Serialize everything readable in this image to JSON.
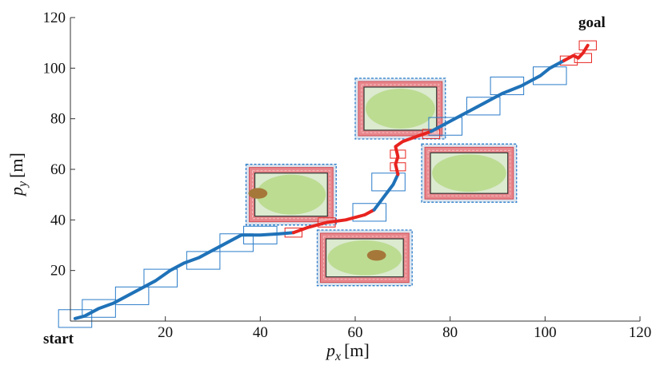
{
  "chart_data": {
    "type": "line",
    "xlabel": {
      "var": "p",
      "sub": "x",
      "unit": "[m]"
    },
    "ylabel": {
      "var": "p",
      "sub": "y",
      "unit": "[m]"
    },
    "xlim": [
      0,
      120
    ],
    "ylim": [
      0,
      120
    ],
    "xticks": [
      "20",
      "40",
      "60",
      "80",
      "100",
      "120"
    ],
    "yticks": [
      "20",
      "40",
      "60",
      "80",
      "100",
      "120"
    ],
    "grid": false,
    "labels": {
      "start": "start",
      "goal": "goal"
    },
    "colors": {
      "path_free": "#1f72b8",
      "path_near_obstacle": "#e8231f",
      "box_outline": "#2a7cc9",
      "obstacle_field": "#dcead0",
      "obstacle_ellipse": "#bcdc92",
      "obstacle_border": "#e8878c",
      "obstacle_core": "#a5783a"
    },
    "path": [
      {
        "x": [
          1,
          3,
          6,
          9,
          12,
          15,
          18,
          21,
          24,
          27,
          30,
          33,
          36,
          40,
          44,
          47
        ],
        "y": [
          1,
          2,
          5,
          7,
          10,
          13,
          16,
          20,
          23,
          25,
          28,
          31,
          34,
          34,
          34.5,
          35
        ],
        "segment": "free"
      },
      {
        "x": [
          47,
          50,
          54,
          58,
          62,
          64
        ],
        "y": [
          35,
          37,
          39,
          40,
          42,
          44
        ],
        "segment": "near_obstacle"
      },
      {
        "x": [
          64,
          66,
          68,
          69
        ],
        "y": [
          44,
          49,
          54,
          58
        ],
        "segment": "free"
      },
      {
        "x": [
          69,
          68.5,
          69,
          68.5,
          70,
          73,
          76
        ],
        "y": [
          58,
          62,
          65,
          69,
          71,
          73,
          75
        ],
        "segment": "near_obstacle"
      },
      {
        "x": [
          76,
          79,
          83,
          87,
          91,
          95,
          99,
          101,
          104
        ],
        "y": [
          75,
          78,
          82,
          86,
          90,
          93,
          97,
          100,
          103
        ],
        "segment": "free"
      },
      {
        "x": [
          104,
          106,
          107,
          108,
          109
        ],
        "y": [
          103,
          105,
          104,
          106,
          109
        ],
        "segment": "near_obstacle"
      }
    ],
    "waypoint_boxes": [
      {
        "x": 1,
        "y": 1,
        "size": 3.5
      },
      {
        "x": 6,
        "y": 5,
        "size": 3.5
      },
      {
        "x": 13,
        "y": 10,
        "size": 3.5
      },
      {
        "x": 19,
        "y": 17,
        "size": 3.5
      },
      {
        "x": 28,
        "y": 24,
        "size": 3.5
      },
      {
        "x": 35,
        "y": 31,
        "size": 3.5
      },
      {
        "x": 40,
        "y": 34,
        "size": 3.5
      },
      {
        "x": 47,
        "y": 35,
        "size": 1.8,
        "near": true
      },
      {
        "x": 54,
        "y": 39,
        "size": 1.8,
        "near": true
      },
      {
        "x": 63,
        "y": 43,
        "size": 3.5
      },
      {
        "x": 67,
        "y": 55,
        "size": 3.5
      },
      {
        "x": 69,
        "y": 61,
        "size": 1.6,
        "near": true
      },
      {
        "x": 69,
        "y": 66,
        "size": 1.6,
        "near": true
      },
      {
        "x": 76,
        "y": 74,
        "size": 1.8,
        "near": true
      },
      {
        "x": 79,
        "y": 77,
        "size": 3.5
      },
      {
        "x": 87,
        "y": 85,
        "size": 3.5
      },
      {
        "x": 92,
        "y": 93,
        "size": 3.5
      },
      {
        "x": 101,
        "y": 97,
        "size": 3.5
      },
      {
        "x": 105,
        "y": 103,
        "size": 1.8,
        "near": true
      },
      {
        "x": 108,
        "y": 104,
        "size": 1.8,
        "near": true
      },
      {
        "x": 109,
        "y": 109,
        "size": 1.8,
        "near": true
      }
    ],
    "obstacles": [
      {
        "xmin": 37,
        "xmax": 56,
        "ymin": 38,
        "ymax": 62,
        "core": {
          "x": 39.5,
          "y": 50.5,
          "rx": 2,
          "ry": 2.5
        }
      },
      {
        "xmin": 52,
        "xmax": 72,
        "ymin": 14,
        "ymax": 36,
        "core": {
          "x": 64.5,
          "y": 26,
          "rx": 2,
          "ry": 2.5
        }
      },
      {
        "xmin": 60,
        "xmax": 79,
        "ymin": 72,
        "ymax": 96,
        "core": null
      },
      {
        "xmin": 74,
        "xmax": 94,
        "ymin": 47,
        "ymax": 70,
        "core": null
      }
    ]
  }
}
